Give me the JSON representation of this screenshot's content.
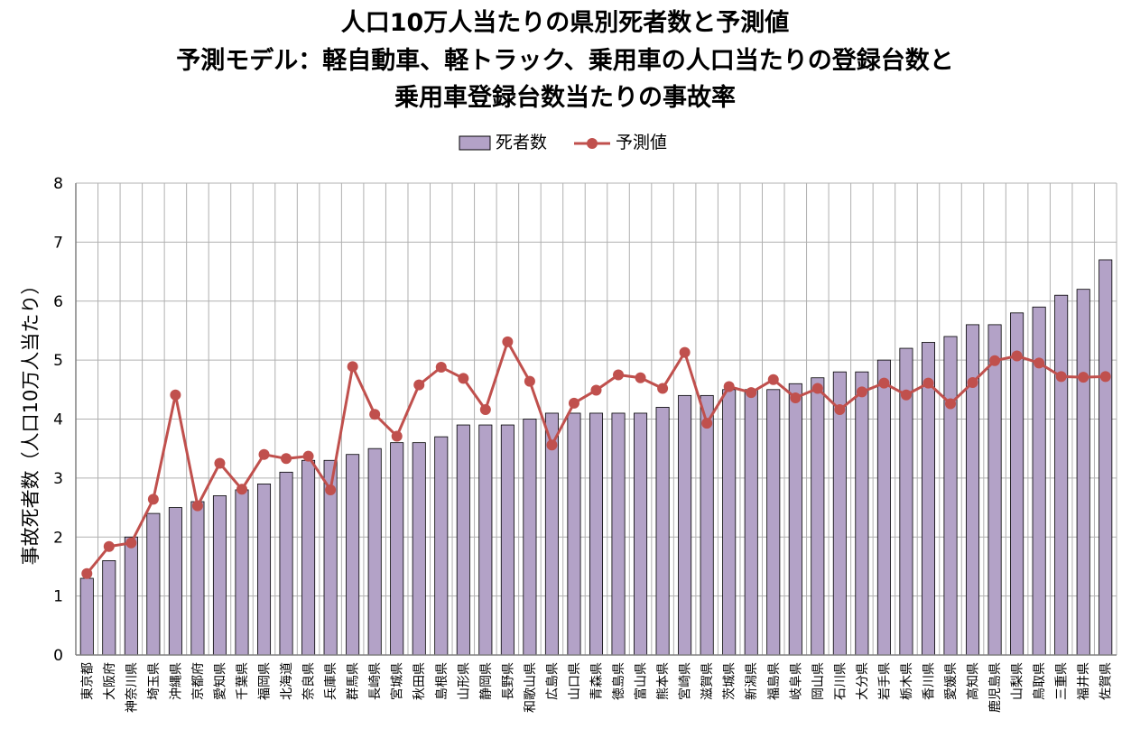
{
  "chart_data": {
    "type": "bar",
    "title_lines": [
      "人口10万人当たりの県別死者数と予測値",
      "予測モデル：軽自動車、軽トラック、乗用車の人口当たりの登録台数と",
      "乗用車登録台数当たりの事故率"
    ],
    "ylabel": "事故死者数（人口10万人当たり）",
    "xlabel": "",
    "ylim": [
      0,
      8
    ],
    "yticks": [
      0,
      1,
      2,
      3,
      4,
      5,
      6,
      7,
      8
    ],
    "grid": true,
    "legend_position": "top-center",
    "categories": [
      "東京都",
      "大阪府",
      "神奈川県",
      "埼玉県",
      "沖縄県",
      "京都府",
      "愛知県",
      "千葉県",
      "福岡県",
      "北海道",
      "奈良県",
      "兵庫県",
      "群馬県",
      "長崎県",
      "宮城県",
      "秋田県",
      "島根県",
      "山形県",
      "静岡県",
      "長野県",
      "和歌山県",
      "広島県",
      "山口県",
      "青森県",
      "徳島県",
      "富山県",
      "熊本県",
      "宮崎県",
      "滋賀県",
      "茨城県",
      "新潟県",
      "福島県",
      "岐阜県",
      "岡山県",
      "石川県",
      "大分県",
      "岩手県",
      "栃木県",
      "香川県",
      "愛媛県",
      "高知県",
      "鹿児島県",
      "山梨県",
      "鳥取県",
      "三重県",
      "福井県",
      "佐賀県"
    ],
    "series": [
      {
        "name": "死者数",
        "type": "bar",
        "color": "#b3a2c7",
        "values": [
          1.3,
          1.6,
          2.0,
          2.4,
          2.5,
          2.6,
          2.7,
          2.8,
          2.9,
          3.1,
          3.3,
          3.3,
          3.4,
          3.5,
          3.6,
          3.6,
          3.7,
          3.9,
          3.9,
          3.9,
          4.0,
          4.1,
          4.1,
          4.1,
          4.1,
          4.1,
          4.2,
          4.4,
          4.4,
          4.5,
          4.5,
          4.5,
          4.6,
          4.7,
          4.8,
          4.8,
          5.0,
          5.2,
          5.3,
          5.4,
          5.6,
          5.6,
          5.8,
          5.9,
          6.1,
          6.2,
          6.7
        ]
      },
      {
        "name": "予測値",
        "type": "line",
        "color": "#c0504d",
        "values": [
          1.38,
          1.84,
          1.9,
          2.64,
          4.41,
          2.53,
          3.25,
          2.81,
          3.4,
          3.33,
          3.37,
          2.8,
          4.89,
          4.08,
          3.71,
          4.58,
          4.88,
          4.69,
          4.16,
          5.31,
          4.64,
          3.56,
          4.27,
          4.49,
          4.75,
          4.7,
          4.52,
          5.13,
          3.93,
          4.55,
          4.45,
          4.67,
          4.36,
          4.52,
          4.16,
          4.46,
          4.61,
          4.41,
          4.61,
          4.26,
          4.62,
          4.99,
          5.07,
          4.95,
          4.72,
          4.71,
          4.72
        ]
      }
    ]
  }
}
